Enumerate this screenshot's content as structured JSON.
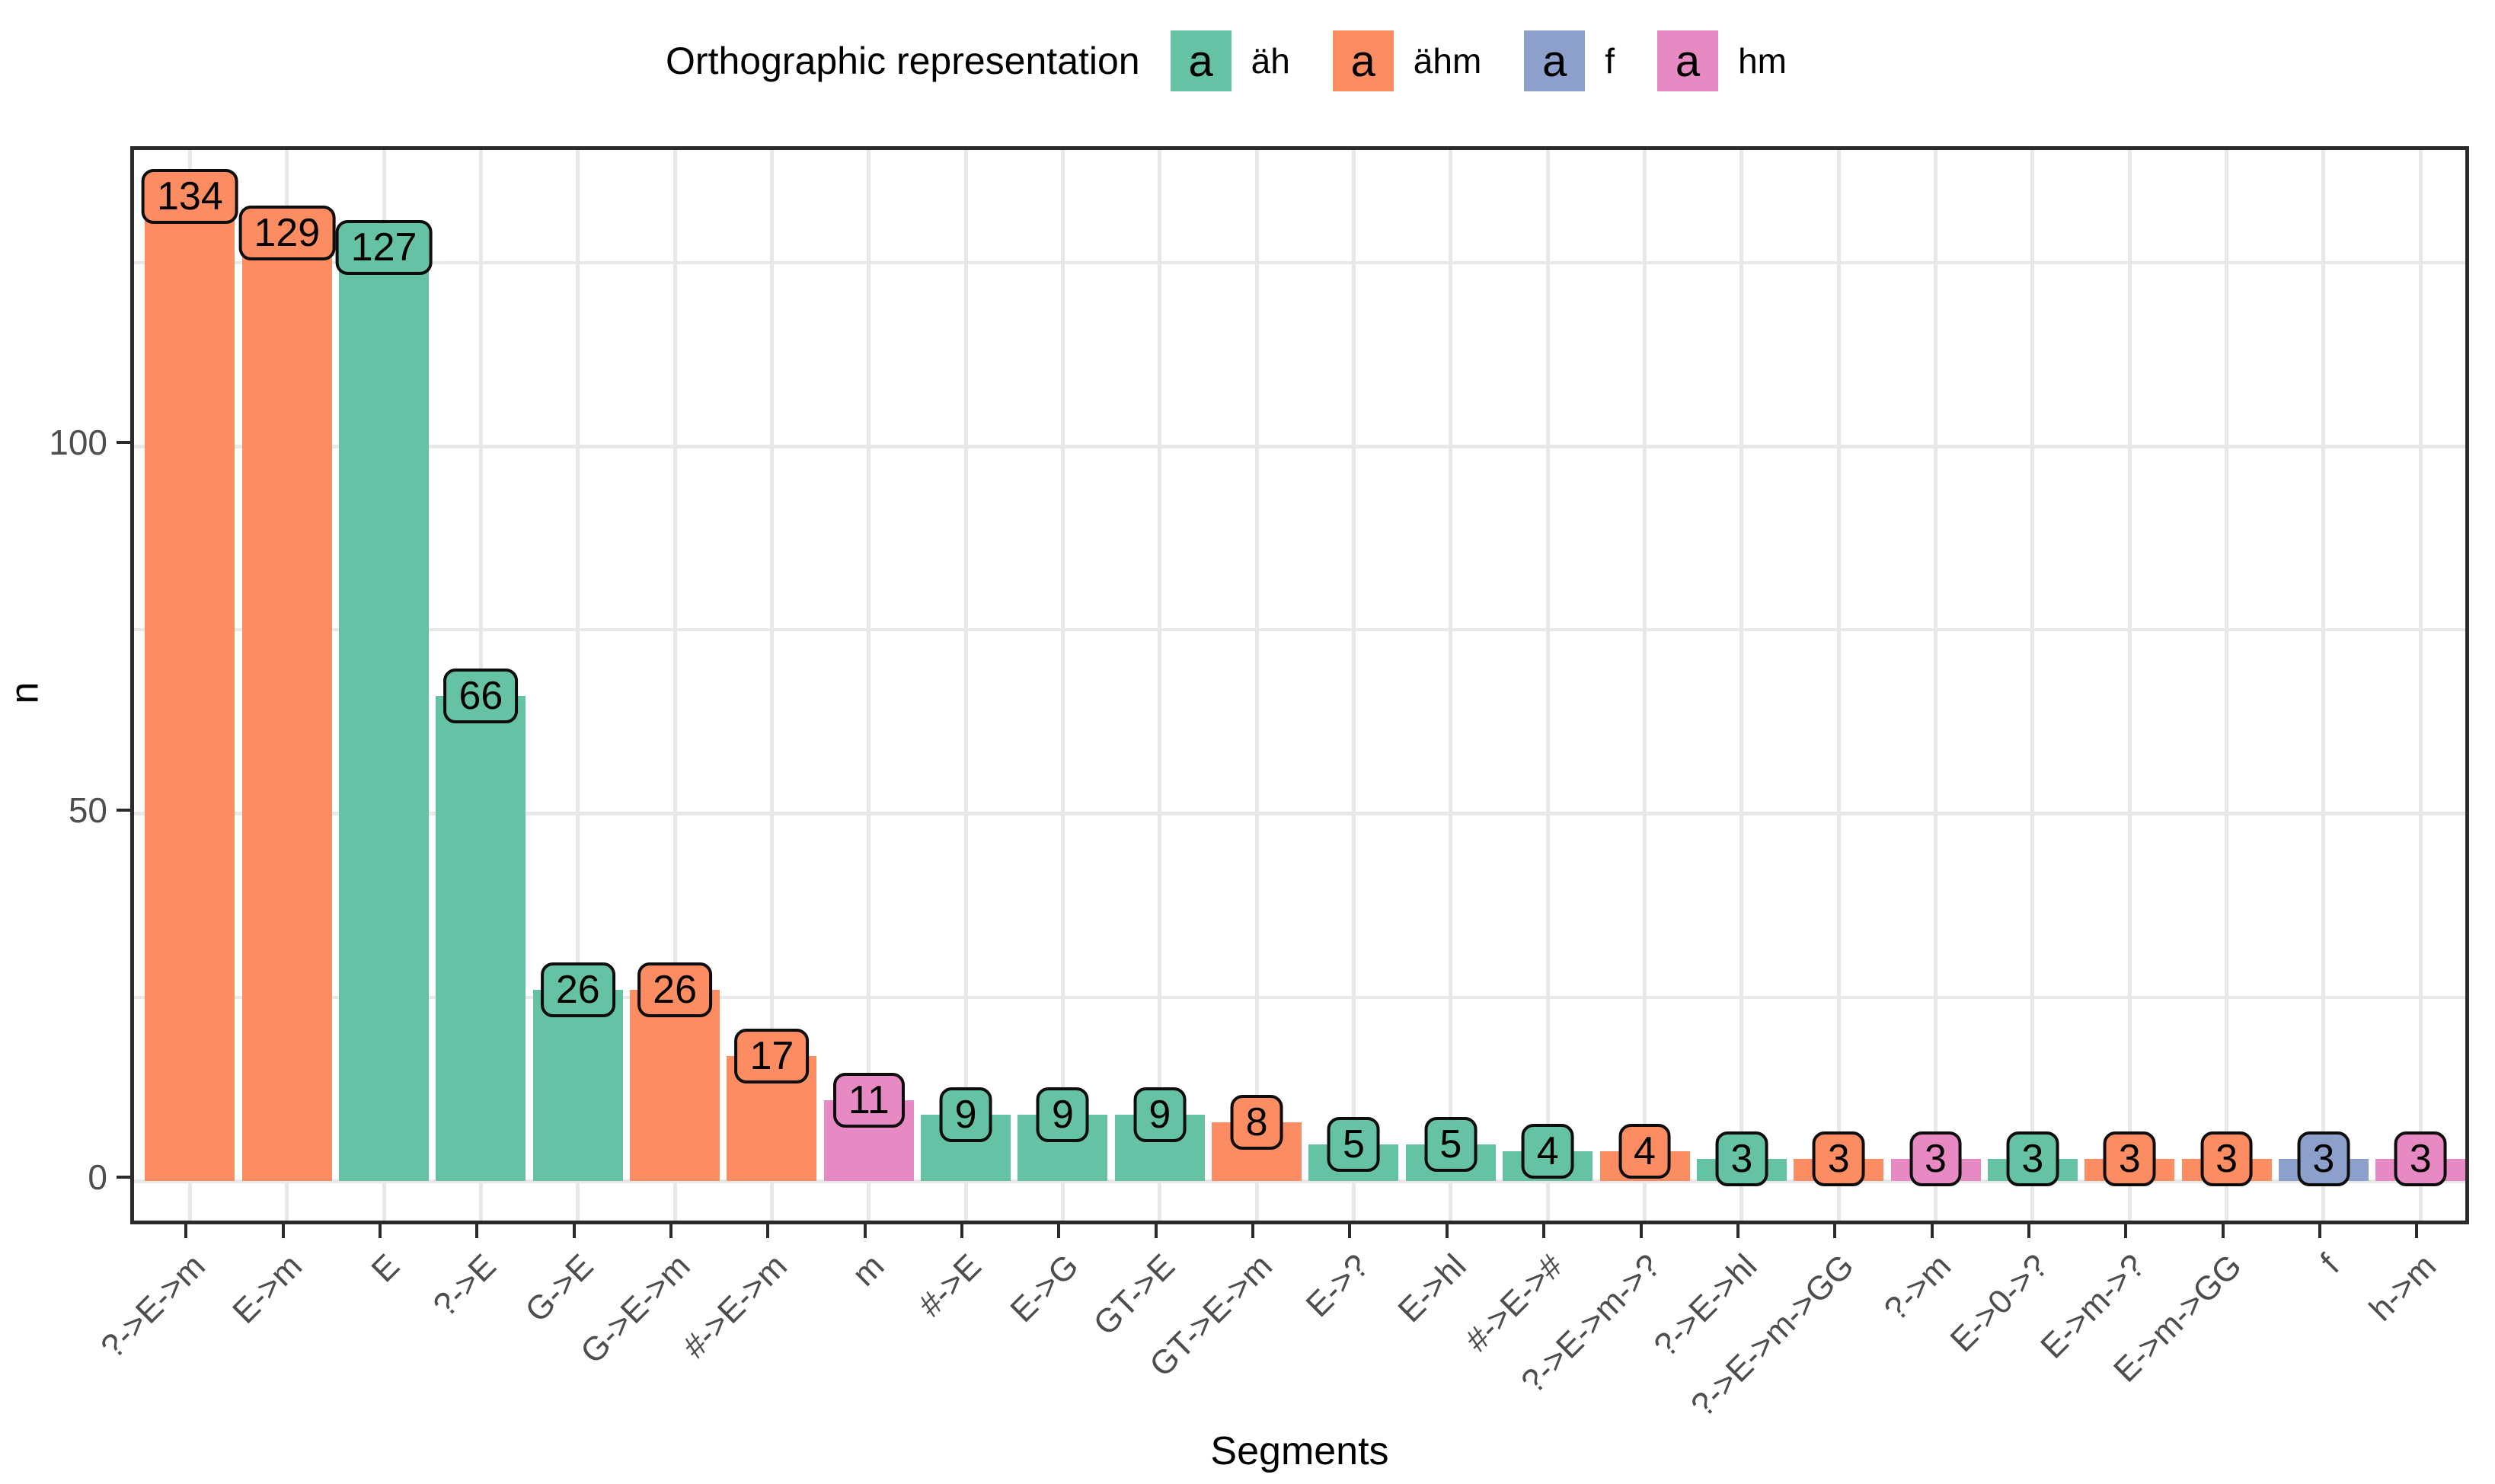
{
  "chart_data": {
    "type": "bar",
    "title": "",
    "legend_title": "Orthographic representation",
    "legend_position": "top",
    "xlabel": "Segments",
    "ylabel": "n",
    "ylim": [
      -6.5,
      140.5
    ],
    "yticks": [
      0,
      50,
      100
    ],
    "minor_gridlines_y": [
      25,
      75,
      125
    ],
    "grid": true,
    "bar_labels_shown": true,
    "categories": [
      "?->E->m",
      "E->m",
      "E",
      "?->E",
      "G->E",
      "G->E->m",
      "#->E->m",
      "m",
      "#->E",
      "E->G",
      "GT->E",
      "GT->E->m",
      "E->?",
      "E->hl",
      "#->E->#",
      "?->E->m->?",
      "?->E->hl",
      "?->E->m->GG",
      "?->m",
      "E->0->?",
      "E->m->?",
      "E->m->GG",
      "f",
      "h->m"
    ],
    "values": [
      134,
      129,
      127,
      66,
      26,
      26,
      17,
      11,
      9,
      9,
      9,
      8,
      5,
      5,
      4,
      4,
      3,
      3,
      3,
      3,
      3,
      3,
      3,
      3
    ],
    "group_of_bar": [
      "ähm",
      "ähm",
      "äh",
      "äh",
      "äh",
      "ähm",
      "ähm",
      "hm",
      "äh",
      "äh",
      "äh",
      "ähm",
      "äh",
      "äh",
      "äh",
      "ähm",
      "äh",
      "ähm",
      "hm",
      "äh",
      "ähm",
      "ähm",
      "f",
      "hm"
    ],
    "legend_entries": [
      {
        "label": "äh",
        "color": "#66C2A5",
        "key_glyph": "a"
      },
      {
        "label": "ähm",
        "color": "#FC8D62",
        "key_glyph": "a"
      },
      {
        "label": "f",
        "color": "#8DA0CB",
        "key_glyph": "a"
      },
      {
        "label": "hm",
        "color": "#E78AC3",
        "key_glyph": "a"
      }
    ],
    "colors": {
      "äh": "#66C2A5",
      "ähm": "#FC8D62",
      "f": "#8DA0CB",
      "hm": "#E78AC3"
    }
  }
}
